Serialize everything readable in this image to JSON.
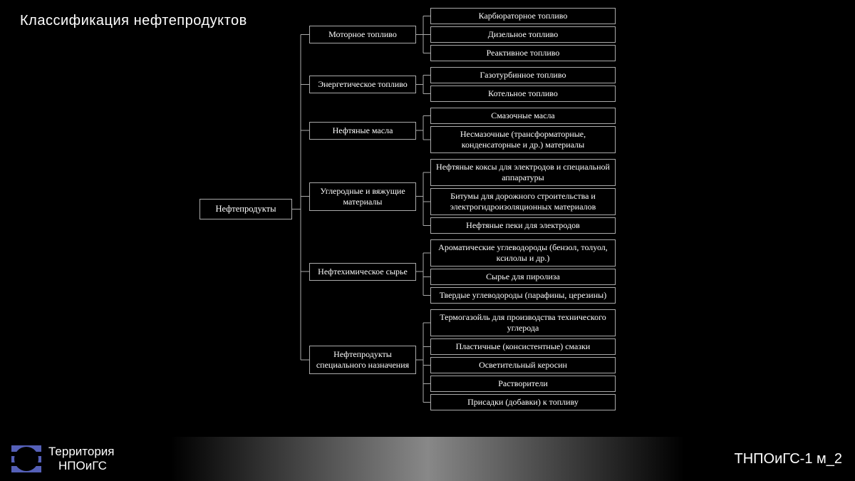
{
  "title": "Классификация нефтепродуктов",
  "root": "Нефтепродукты",
  "categories": [
    {
      "label": "Моторное топливо",
      "children": [
        "Карбюраторное топливо",
        "Дизельное топливо",
        "Реактивное топливо"
      ]
    },
    {
      "label": "Энергетическое топливо",
      "children": [
        "Газотурбинное топливо",
        "Котельное топливо"
      ]
    },
    {
      "label": "Нефтяные масла",
      "children": [
        "Смазочные масла",
        "Несмазочные (трансформаторные, конденсаторные и др.) материалы"
      ]
    },
    {
      "label": "Углеродные и вяжущие материалы",
      "children": [
        "Нефтяные коксы для электродов и специальной аппаратуры",
        "Битумы для дорожного строительства и электрогидроизоляционных материалов",
        "Нефтяные пеки для электродов"
      ]
    },
    {
      "label": "Нефтехимическое сырье",
      "children": [
        "Ароматические углеводороды (бензол, толуол, ксилолы и др.)",
        "Сырье для пиролиза",
        "Твердые углеводороды (парафины, церезины)"
      ]
    },
    {
      "label": "Нефтепродукты специального назначения",
      "children": [
        "Термогазойль для производства технического углерода",
        "Пластичные (консистентные) смазки",
        "Осветительный керосин",
        "Растворители",
        "Присадки (добавки) к топливу"
      ]
    }
  ],
  "footer": {
    "line1": "Территория",
    "line2": "НПОиГС",
    "right": "ТНПОиГС-1 м_2"
  },
  "colors": {
    "background": "#000000",
    "text": "#ffffff",
    "border": "#aaaaaa",
    "logo_accent": "#5560b8"
  }
}
